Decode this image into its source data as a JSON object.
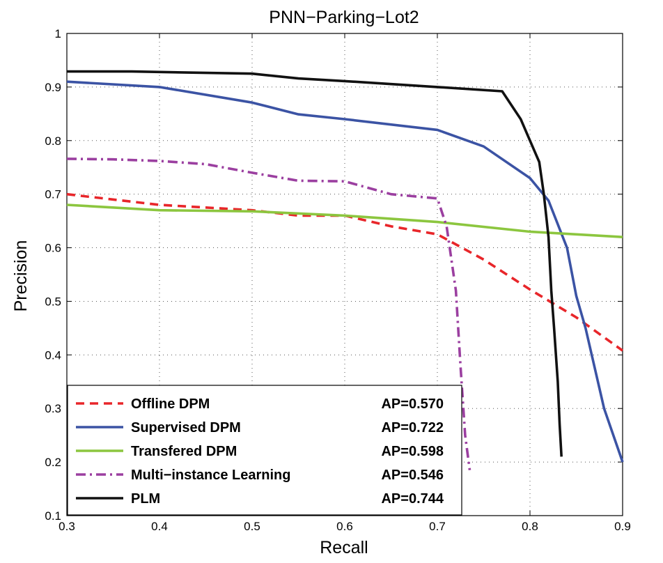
{
  "chart_data": {
    "type": "line",
    "title": "PNN−Parking−Lot2",
    "xlabel": "Recall",
    "ylabel": "Precision",
    "xlim": [
      0.3,
      0.9
    ],
    "ylim": [
      0.1,
      1.0
    ],
    "xticks": [
      0.3,
      0.4,
      0.5,
      0.6,
      0.7,
      0.8,
      0.9
    ],
    "yticks": [
      0.1,
      0.2,
      0.3,
      0.4,
      0.5,
      0.6,
      0.7,
      0.8,
      0.9,
      1.0
    ],
    "xtick_labels": [
      "0.3",
      "0.4",
      "0.5",
      "0.6",
      "0.7",
      "0.8",
      "0.9"
    ],
    "ytick_labels": [
      "0.1",
      "0.2",
      "0.3",
      "0.4",
      "0.5",
      "0.6",
      "0.7",
      "0.8",
      "0.9",
      "1"
    ],
    "grid": true,
    "legend_position": "bottom-left",
    "series": [
      {
        "name": "Offline DPM",
        "ap": "AP=0.570",
        "color": "#e8262a",
        "style": "dashed",
        "x": [
          0.3,
          0.4,
          0.5,
          0.55,
          0.6,
          0.65,
          0.7,
          0.75,
          0.8,
          0.85,
          0.9
        ],
        "y": [
          0.7,
          0.68,
          0.67,
          0.66,
          0.66,
          0.64,
          0.625,
          0.578,
          0.522,
          0.47,
          0.408
        ]
      },
      {
        "name": "Supervised DPM",
        "ap": "AP=0.722",
        "color": "#3b53a4",
        "style": "solid",
        "x": [
          0.3,
          0.4,
          0.5,
          0.55,
          0.6,
          0.7,
          0.75,
          0.8,
          0.82,
          0.84,
          0.85,
          0.86,
          0.88,
          0.9
        ],
        "y": [
          0.91,
          0.9,
          0.871,
          0.849,
          0.84,
          0.82,
          0.789,
          0.73,
          0.688,
          0.6,
          0.51,
          0.45,
          0.3,
          0.2
        ]
      },
      {
        "name": "Transfered DPM",
        "ap": "AP=0.598",
        "color": "#8cc63f",
        "style": "solid",
        "x": [
          0.3,
          0.4,
          0.5,
          0.6,
          0.7,
          0.8,
          0.9
        ],
        "y": [
          0.68,
          0.67,
          0.668,
          0.66,
          0.648,
          0.63,
          0.62
        ]
      },
      {
        "name": "Multi−instance Learning",
        "ap": "AP=0.546",
        "color": "#9b3fa0",
        "style": "dashdot",
        "x": [
          0.3,
          0.35,
          0.4,
          0.45,
          0.5,
          0.55,
          0.6,
          0.65,
          0.7,
          0.71,
          0.72,
          0.725,
          0.73,
          0.735
        ],
        "y": [
          0.766,
          0.765,
          0.762,
          0.756,
          0.74,
          0.725,
          0.724,
          0.7,
          0.692,
          0.64,
          0.52,
          0.38,
          0.25,
          0.185
        ]
      },
      {
        "name": "PLM",
        "ap": "AP=0.744",
        "color": "#111111",
        "style": "solid",
        "x": [
          0.3,
          0.37,
          0.5,
          0.55,
          0.6,
          0.7,
          0.77,
          0.79,
          0.8,
          0.81,
          0.815,
          0.82,
          0.823,
          0.826,
          0.83,
          0.832,
          0.834
        ],
        "y": [
          0.929,
          0.929,
          0.925,
          0.916,
          0.911,
          0.9,
          0.892,
          0.84,
          0.8,
          0.76,
          0.7,
          0.62,
          0.52,
          0.45,
          0.35,
          0.27,
          0.21
        ]
      }
    ]
  }
}
